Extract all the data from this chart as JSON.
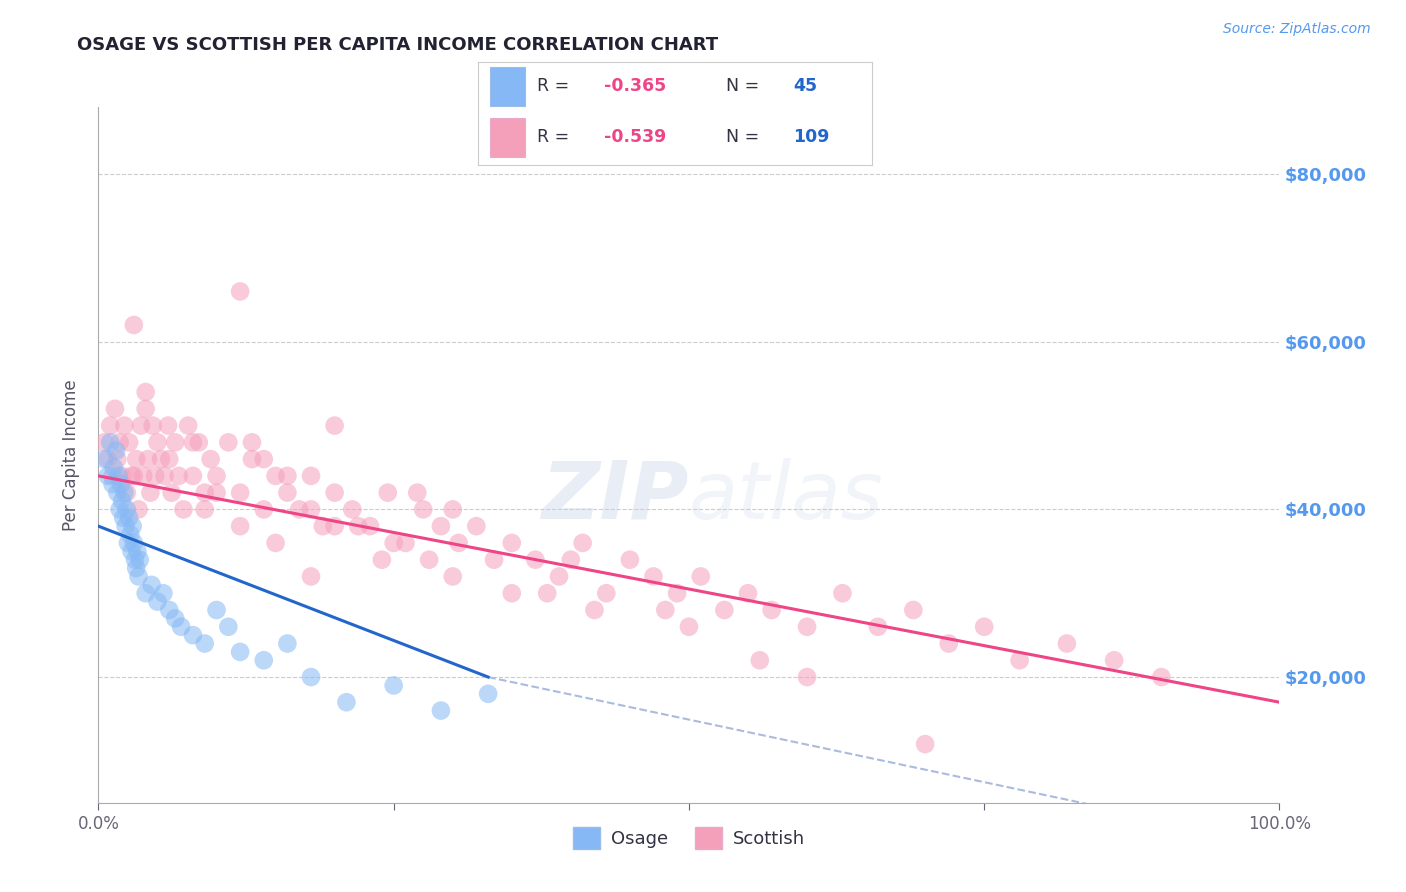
{
  "title": "OSAGE VS SCOTTISH PER CAPITA INCOME CORRELATION CHART",
  "source": "Source: ZipAtlas.com",
  "ylabel": "Per Capita Income",
  "xlim": [
    0,
    1.0
  ],
  "ylim": [
    5000,
    88000
  ],
  "ytick_positions": [
    20000,
    40000,
    60000,
    80000
  ],
  "ytick_labels": [
    "$20,000",
    "$40,000",
    "$60,000",
    "$80,000"
  ],
  "background_color": "#ffffff",
  "grid_color": "#cccccc",
  "watermark_zip": "ZIP",
  "watermark_atlas": "atlas",
  "osage_color": "#85b8f5",
  "scottish_color": "#f5a0bb",
  "osage_scatter_x": [
    0.005,
    0.008,
    0.01,
    0.012,
    0.013,
    0.015,
    0.016,
    0.017,
    0.018,
    0.019,
    0.02,
    0.021,
    0.022,
    0.023,
    0.024,
    0.025,
    0.026,
    0.027,
    0.028,
    0.029,
    0.03,
    0.031,
    0.032,
    0.033,
    0.034,
    0.035,
    0.04,
    0.045,
    0.05,
    0.055,
    0.06,
    0.065,
    0.07,
    0.08,
    0.09,
    0.1,
    0.11,
    0.12,
    0.14,
    0.16,
    0.18,
    0.21,
    0.25,
    0.29,
    0.33
  ],
  "osage_scatter_y": [
    46000,
    44000,
    48000,
    43000,
    45000,
    47000,
    42000,
    44000,
    40000,
    43000,
    41000,
    39000,
    42000,
    38000,
    40000,
    36000,
    39000,
    37000,
    35000,
    38000,
    36000,
    34000,
    33000,
    35000,
    32000,
    34000,
    30000,
    31000,
    29000,
    30000,
    28000,
    27000,
    26000,
    25000,
    24000,
    28000,
    26000,
    23000,
    22000,
    24000,
    20000,
    17000,
    19000,
    16000,
    18000
  ],
  "scottish_scatter_x": [
    0.005,
    0.008,
    0.01,
    0.012,
    0.014,
    0.016,
    0.018,
    0.02,
    0.022,
    0.024,
    0.026,
    0.028,
    0.03,
    0.032,
    0.034,
    0.036,
    0.038,
    0.04,
    0.042,
    0.044,
    0.046,
    0.048,
    0.05,
    0.053,
    0.056,
    0.059,
    0.062,
    0.065,
    0.068,
    0.072,
    0.076,
    0.08,
    0.085,
    0.09,
    0.095,
    0.1,
    0.11,
    0.12,
    0.13,
    0.14,
    0.15,
    0.16,
    0.17,
    0.18,
    0.19,
    0.2,
    0.215,
    0.23,
    0.245,
    0.26,
    0.275,
    0.29,
    0.305,
    0.32,
    0.335,
    0.35,
    0.37,
    0.39,
    0.41,
    0.43,
    0.45,
    0.47,
    0.49,
    0.51,
    0.53,
    0.55,
    0.57,
    0.6,
    0.63,
    0.66,
    0.69,
    0.72,
    0.75,
    0.78,
    0.82,
    0.86,
    0.9,
    0.03,
    0.06,
    0.09,
    0.12,
    0.15,
    0.18,
    0.1,
    0.08,
    0.2,
    0.25,
    0.3,
    0.35,
    0.18,
    0.24,
    0.16,
    0.04,
    0.12,
    0.2,
    0.3,
    0.4,
    0.5,
    0.6,
    0.27,
    0.14,
    0.22,
    0.38,
    0.48,
    0.13,
    0.28,
    0.42,
    0.56,
    0.7
  ],
  "scottish_scatter_y": [
    48000,
    46000,
    50000,
    44000,
    52000,
    46000,
    48000,
    44000,
    50000,
    42000,
    48000,
    44000,
    62000,
    46000,
    40000,
    50000,
    44000,
    52000,
    46000,
    42000,
    50000,
    44000,
    48000,
    46000,
    44000,
    50000,
    42000,
    48000,
    44000,
    40000,
    50000,
    44000,
    48000,
    42000,
    46000,
    44000,
    48000,
    42000,
    46000,
    40000,
    44000,
    42000,
    40000,
    44000,
    38000,
    42000,
    40000,
    38000,
    42000,
    36000,
    40000,
    38000,
    36000,
    38000,
    34000,
    36000,
    34000,
    32000,
    36000,
    30000,
    34000,
    32000,
    30000,
    32000,
    28000,
    30000,
    28000,
    26000,
    30000,
    26000,
    28000,
    24000,
    26000,
    22000,
    24000,
    22000,
    20000,
    44000,
    46000,
    40000,
    38000,
    36000,
    32000,
    42000,
    48000,
    38000,
    36000,
    32000,
    30000,
    40000,
    34000,
    44000,
    54000,
    66000,
    50000,
    40000,
    34000,
    26000,
    20000,
    42000,
    46000,
    38000,
    30000,
    28000,
    48000,
    34000,
    28000,
    22000,
    12000
  ],
  "osage_line_x": [
    0.0,
    0.33
  ],
  "osage_line_y": [
    38000,
    20000
  ],
  "scottish_line_x": [
    0.0,
    1.0
  ],
  "scottish_line_y": [
    44000,
    17000
  ],
  "dashed_line_x": [
    0.33,
    1.0
  ],
  "dashed_line_y": [
    20000,
    0
  ],
  "title_color": "#222233",
  "axis_label_color": "#555566",
  "right_label_color": "#5599ee",
  "blue_line_color": "#2266cc",
  "pink_line_color": "#ee4488",
  "dashed_line_color": "#aabbdd",
  "legend_r_color": "#ee4488",
  "legend_n_color": "#2266cc",
  "legend_text_color": "#333344",
  "source_color": "#5599ee"
}
